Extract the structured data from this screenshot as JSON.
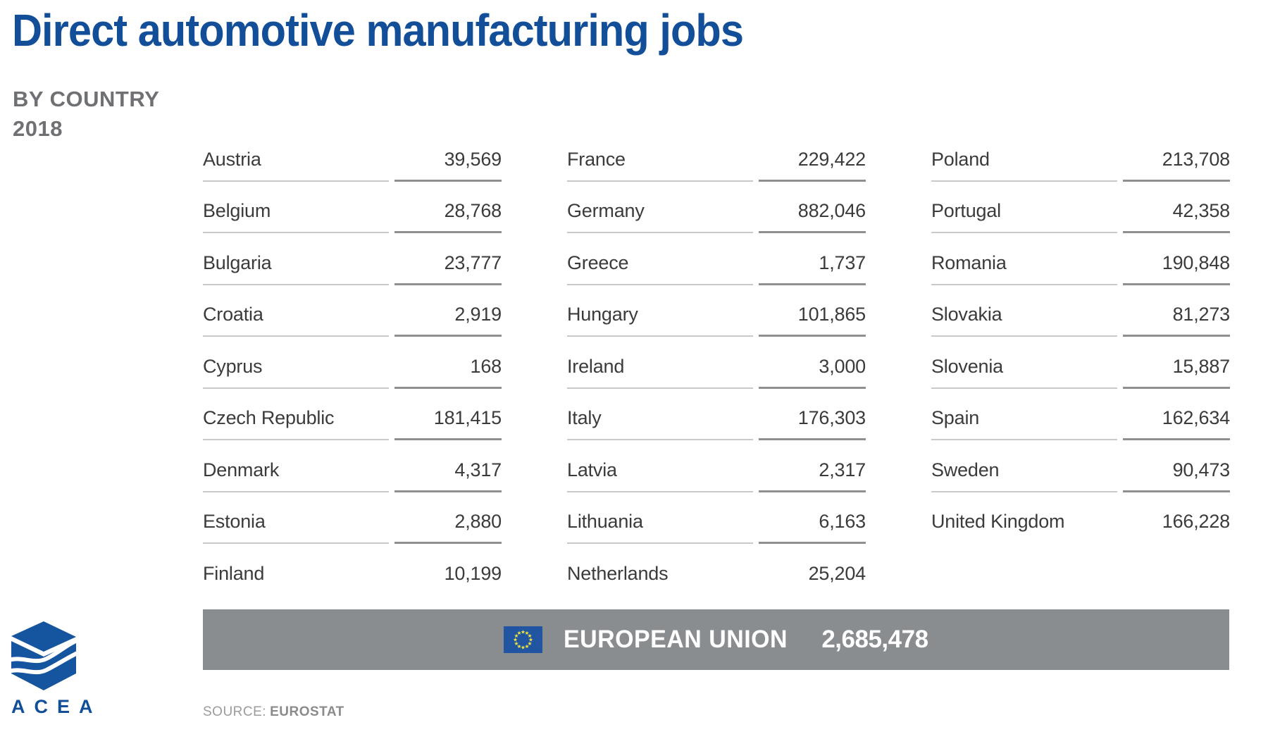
{
  "header": {
    "title": "Direct automotive manufacturing jobs",
    "subtitle_line1": "BY COUNTRY",
    "subtitle_line2": "2018"
  },
  "table": {
    "columns": [
      {
        "rows": [
          {
            "label": "Austria",
            "value": "39,569"
          },
          {
            "label": "Belgium",
            "value": "28,768"
          },
          {
            "label": "Bulgaria",
            "value": "23,777"
          },
          {
            "label": "Croatia",
            "value": "2,919"
          },
          {
            "label": "Cyprus",
            "value": "168"
          },
          {
            "label": "Czech Republic",
            "value": "181,415"
          },
          {
            "label": "Denmark",
            "value": "4,317"
          },
          {
            "label": "Estonia",
            "value": "2,880"
          },
          {
            "label": "Finland",
            "value": "10,199"
          }
        ]
      },
      {
        "rows": [
          {
            "label": "France",
            "value": "229,422"
          },
          {
            "label": "Germany",
            "value": "882,046"
          },
          {
            "label": "Greece",
            "value": "1,737"
          },
          {
            "label": "Hungary",
            "value": "101,865"
          },
          {
            "label": "Ireland",
            "value": "3,000"
          },
          {
            "label": "Italy",
            "value": "176,303"
          },
          {
            "label": "Latvia",
            "value": "2,317"
          },
          {
            "label": "Lithuania",
            "value": "6,163"
          },
          {
            "label": "Netherlands",
            "value": "25,204"
          }
        ]
      },
      {
        "rows": [
          {
            "label": "Poland",
            "value": "213,708"
          },
          {
            "label": "Portugal",
            "value": "42,358"
          },
          {
            "label": "Romania",
            "value": "190,848"
          },
          {
            "label": "Slovakia",
            "value": "81,273"
          },
          {
            "label": "Slovenia",
            "value": "15,887"
          },
          {
            "label": "Spain",
            "value": "162,634"
          },
          {
            "label": "Sweden",
            "value": "90,473"
          },
          {
            "label": "United Kingdom",
            "value": "166,228"
          }
        ]
      }
    ]
  },
  "eu_total": {
    "label": "EUROPEAN UNION",
    "value": "2,685,478"
  },
  "branding": {
    "logo_text": "ACEA"
  },
  "footer": {
    "source_prefix": "SOURCE:",
    "source_name": "EUROSTAT"
  },
  "icons": {
    "eu_flag": "eu-flag-circle-of-12-stars",
    "acea_logo": "blue-3d-cube-with-wavy-split"
  },
  "colors": {
    "accent": "#134f98",
    "subtitle": "#6e7073",
    "text": "#3b3b3b",
    "rule_light": "#c9c9c9",
    "rule_dark": "#8f8f8f",
    "bar": "#8a8d90",
    "flag_blue": "#2155a2",
    "star_yellow": "#f7e73a"
  },
  "chart_data": {
    "type": "table",
    "title": "Direct automotive manufacturing jobs",
    "subtitle": "BY COUNTRY 2018",
    "unit": "jobs",
    "categories": [
      "Austria",
      "Belgium",
      "Bulgaria",
      "Croatia",
      "Cyprus",
      "Czech Republic",
      "Denmark",
      "Estonia",
      "Finland",
      "France",
      "Germany",
      "Greece",
      "Hungary",
      "Ireland",
      "Italy",
      "Latvia",
      "Lithuania",
      "Netherlands",
      "Poland",
      "Portugal",
      "Romania",
      "Slovakia",
      "Slovenia",
      "Spain",
      "Sweden",
      "United Kingdom"
    ],
    "values": [
      39569,
      28768,
      23777,
      2919,
      168,
      181415,
      4317,
      2880,
      10199,
      229422,
      882046,
      1737,
      101865,
      3000,
      176303,
      2317,
      6163,
      25204,
      213708,
      42358,
      190848,
      81273,
      15887,
      162634,
      90473,
      166228
    ],
    "total": {
      "label": "EUROPEAN UNION",
      "value": 2685478
    },
    "source": "EUROSTAT"
  }
}
